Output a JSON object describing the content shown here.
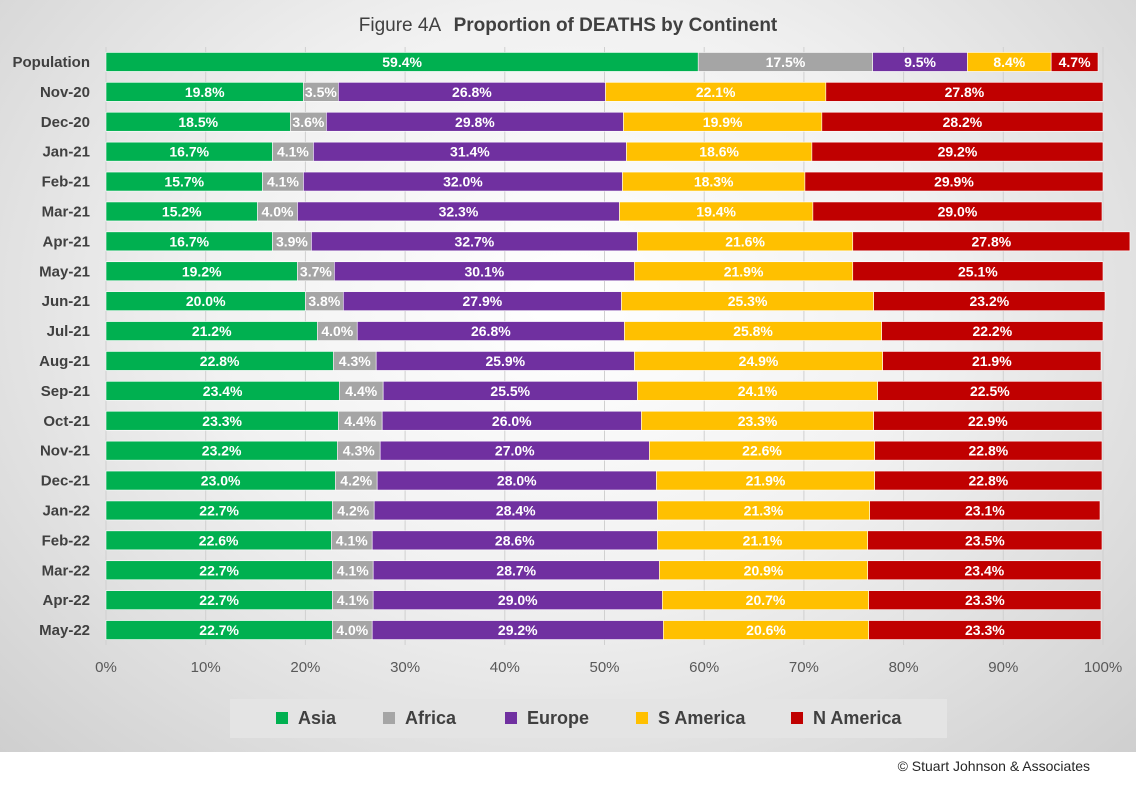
{
  "chart_data": {
    "type": "bar",
    "orientation": "horizontal",
    "stacked": true,
    "title_prefix": "Figure  4A",
    "title": "Proportion of DEATHS by Continent",
    "categories": [
      "Population",
      "Nov-20",
      "Dec-20",
      "Jan-21",
      "Feb-21",
      "Mar-21",
      "Apr-21",
      "May-21",
      "Jun-21",
      "Jul-21",
      "Aug-21",
      "Sep-21",
      "Oct-21",
      "Nov-21",
      "Dec-21",
      "Jan-22",
      "Feb-22",
      "Mar-22",
      "Apr-22",
      "May-22"
    ],
    "series": [
      {
        "name": "Asia",
        "color": "#00b050",
        "values": [
          59.4,
          19.8,
          18.5,
          16.7,
          15.7,
          15.2,
          16.7,
          19.2,
          20.0,
          21.2,
          22.8,
          23.4,
          23.3,
          23.2,
          23.0,
          22.7,
          22.6,
          22.7,
          22.7,
          22.7
        ]
      },
      {
        "name": "Africa",
        "color": "#a5a5a5",
        "values": [
          17.5,
          3.5,
          3.6,
          4.1,
          4.1,
          4.0,
          3.9,
          3.7,
          3.8,
          4.0,
          4.3,
          4.4,
          4.4,
          4.3,
          4.2,
          4.2,
          4.1,
          4.1,
          4.1,
          4.0
        ]
      },
      {
        "name": "Europe",
        "color": "#7030a0",
        "values": [
          9.5,
          26.8,
          29.8,
          31.4,
          32.0,
          32.3,
          32.7,
          30.1,
          27.9,
          26.8,
          25.9,
          25.5,
          26.0,
          27.0,
          28.0,
          28.4,
          28.6,
          28.7,
          29.0,
          29.2
        ]
      },
      {
        "name": "S America",
        "color": "#ffc000",
        "values": [
          8.4,
          22.1,
          19.9,
          18.6,
          18.3,
          19.4,
          21.6,
          21.9,
          25.3,
          25.8,
          24.9,
          24.1,
          23.3,
          22.6,
          21.9,
          21.3,
          21.1,
          20.9,
          20.7,
          20.6
        ]
      },
      {
        "name": "N America",
        "color": "#c00000",
        "values": [
          4.7,
          27.8,
          28.2,
          29.2,
          29.9,
          29.0,
          27.8,
          25.1,
          23.2,
          22.2,
          21.9,
          22.5,
          22.9,
          22.8,
          22.8,
          23.1,
          23.5,
          23.4,
          23.3,
          23.3
        ]
      }
    ],
    "xlim": [
      0,
      100
    ],
    "xticks": [
      "0%",
      "10%",
      "20%",
      "30%",
      "40%",
      "50%",
      "60%",
      "70%",
      "80%",
      "90%",
      "100%"
    ],
    "grid": true,
    "legend_position": "bottom"
  },
  "footer": {
    "copyright": "© Stuart Johnson & Associates"
  }
}
